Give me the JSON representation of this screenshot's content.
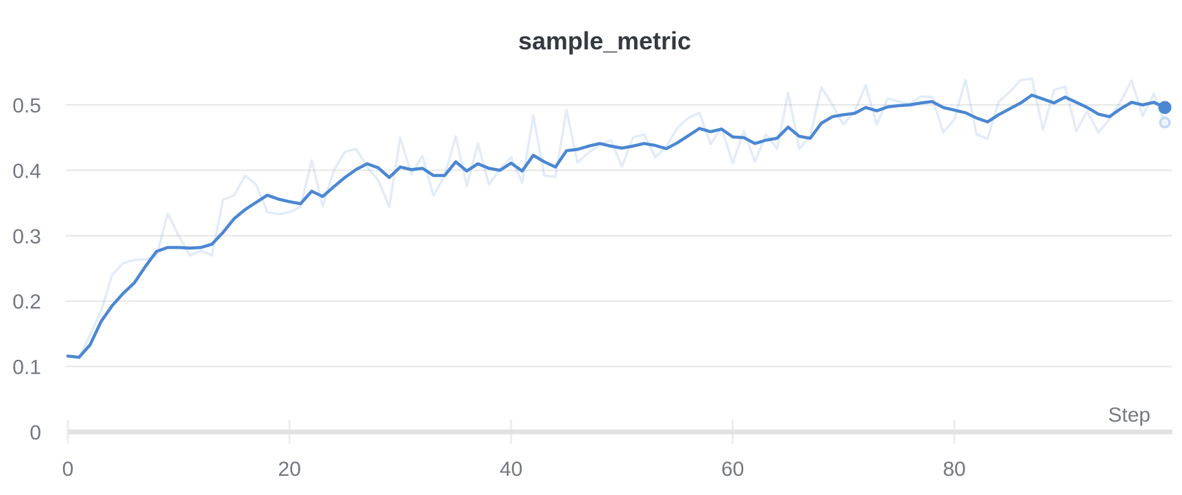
{
  "chart": {
    "title": "sample_metric",
    "x_axis_label": "Step",
    "y_ticks": [
      {
        "label": "0",
        "value": 0
      },
      {
        "label": "0.1",
        "value": 0.1
      },
      {
        "label": "0.2",
        "value": 0.2
      },
      {
        "label": "0.3",
        "value": 0.3
      },
      {
        "label": "0.4",
        "value": 0.4
      },
      {
        "label": "0.5",
        "value": 0.5
      }
    ],
    "x_ticks": [
      {
        "label": "0",
        "value": 0
      },
      {
        "label": "20",
        "value": 20
      },
      {
        "label": "40",
        "value": 40
      },
      {
        "label": "60",
        "value": 60
      },
      {
        "label": "80",
        "value": 80
      }
    ],
    "colors": {
      "line_blue": "#4b87d2",
      "raw_line_opacity": 0.16,
      "gridline": "#e7e7e7",
      "axis_line": "#e2e2e2",
      "tick_mark": "#ededed",
      "label_text": "#73777f",
      "title_text": "#343a40",
      "background": "#ffffff"
    },
    "latest_values": {
      "smoothed": 0.496,
      "raw": 0.473
    }
  },
  "chart_data": {
    "type": "line",
    "title": "sample_metric",
    "xlabel": "Step",
    "ylabel": "",
    "x_range": [
      0,
      99
    ],
    "ylim": [
      0,
      0.55
    ],
    "grid": "horizontal-only",
    "legend_position": "none",
    "x": [
      0,
      1,
      2,
      3,
      4,
      5,
      6,
      7,
      8,
      9,
      10,
      11,
      12,
      13,
      14,
      15,
      16,
      17,
      18,
      19,
      20,
      21,
      22,
      23,
      24,
      25,
      26,
      27,
      28,
      29,
      30,
      31,
      32,
      33,
      34,
      35,
      36,
      37,
      38,
      39,
      40,
      41,
      42,
      43,
      44,
      45,
      46,
      47,
      48,
      49,
      50,
      51,
      52,
      53,
      54,
      55,
      56,
      57,
      58,
      59,
      60,
      61,
      62,
      63,
      64,
      65,
      66,
      67,
      68,
      69,
      70,
      71,
      72,
      73,
      74,
      75,
      76,
      77,
      78,
      79,
      80,
      81,
      82,
      83,
      84,
      85,
      86,
      87,
      88,
      89,
      90,
      91,
      92,
      93,
      94,
      95,
      96,
      97,
      98,
      99
    ],
    "series": [
      {
        "name": "sample_metric (raw)",
        "role": "raw",
        "style": "faded",
        "values": [
          0.116,
          0.113,
          0.148,
          0.185,
          0.24,
          0.258,
          0.263,
          0.264,
          0.268,
          0.334,
          0.3,
          0.27,
          0.277,
          0.27,
          0.355,
          0.362,
          0.392,
          0.378,
          0.336,
          0.333,
          0.336,
          0.344,
          0.415,
          0.345,
          0.4,
          0.428,
          0.433,
          0.405,
          0.385,
          0.344,
          0.45,
          0.394,
          0.422,
          0.361,
          0.392,
          0.452,
          0.376,
          0.441,
          0.378,
          0.402,
          0.42,
          0.381,
          0.484,
          0.392,
          0.39,
          0.492,
          0.412,
          0.427,
          0.439,
          0.446,
          0.406,
          0.45,
          0.455,
          0.42,
          0.436,
          0.465,
          0.48,
          0.488,
          0.44,
          0.465,
          0.411,
          0.46,
          0.413,
          0.455,
          0.433,
          0.519,
          0.433,
          0.452,
          0.527,
          0.5,
          0.47,
          0.49,
          0.53,
          0.47,
          0.51,
          0.505,
          0.502,
          0.513,
          0.512,
          0.458,
          0.478,
          0.538,
          0.455,
          0.448,
          0.505,
          0.52,
          0.538,
          0.54,
          0.462,
          0.523,
          0.528,
          0.46,
          0.49,
          0.458,
          0.478,
          0.505,
          0.537,
          0.483,
          0.517,
          0.473
        ]
      },
      {
        "name": "sample_metric (smoothed)",
        "role": "smoothed",
        "style": "solid",
        "values": [
          0.116,
          0.114,
          0.133,
          0.169,
          0.193,
          0.212,
          0.228,
          0.253,
          0.276,
          0.282,
          0.282,
          0.281,
          0.282,
          0.287,
          0.305,
          0.326,
          0.34,
          0.351,
          0.362,
          0.356,
          0.352,
          0.349,
          0.368,
          0.36,
          0.375,
          0.389,
          0.401,
          0.41,
          0.404,
          0.389,
          0.405,
          0.401,
          0.403,
          0.392,
          0.392,
          0.413,
          0.399,
          0.41,
          0.403,
          0.4,
          0.411,
          0.399,
          0.423,
          0.413,
          0.405,
          0.43,
          0.432,
          0.437,
          0.441,
          0.437,
          0.434,
          0.437,
          0.441,
          0.438,
          0.433,
          0.442,
          0.453,
          0.464,
          0.459,
          0.463,
          0.451,
          0.45,
          0.441,
          0.446,
          0.449,
          0.466,
          0.452,
          0.449,
          0.472,
          0.482,
          0.485,
          0.487,
          0.496,
          0.491,
          0.497,
          0.499,
          0.5,
          0.503,
          0.505,
          0.496,
          0.492,
          0.488,
          0.48,
          0.474,
          0.485,
          0.494,
          0.503,
          0.515,
          0.509,
          0.503,
          0.512,
          0.504,
          0.496,
          0.486,
          0.482,
          0.494,
          0.504,
          0.5,
          0.504,
          0.496
        ]
      }
    ]
  }
}
